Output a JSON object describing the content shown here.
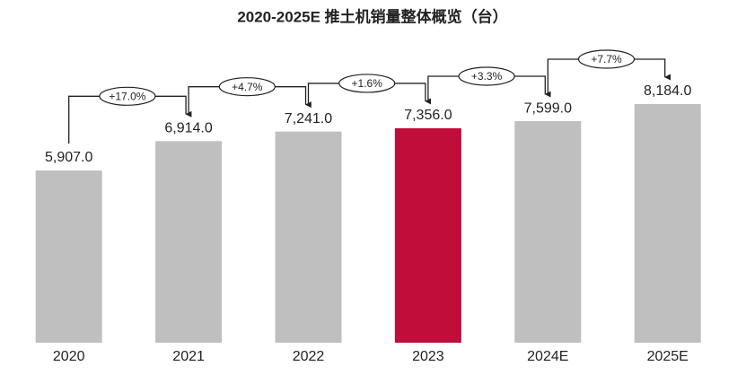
{
  "chart_data": {
    "type": "bar",
    "title": "2020-2025E 推土机销量整体概览（台）",
    "categories": [
      "2020",
      "2021",
      "2022",
      "2023",
      "2024E",
      "2025E"
    ],
    "values": [
      5907,
      6914,
      7241,
      7356,
      7599,
      8184
    ],
    "value_labels": [
      "5,907.0",
      "6,914.0",
      "7,241.0",
      "7,356.0",
      "7,599.0",
      "8,184.0"
    ],
    "colors": [
      "#bfbfbf",
      "#bfbfbf",
      "#bfbfbf",
      "#c00d3a",
      "#bfbfbf",
      "#bfbfbf"
    ],
    "annotations": [
      "+17.0%",
      "+4.7%",
      "+1.6%",
      "+3.3%",
      "+7.7%"
    ]
  }
}
